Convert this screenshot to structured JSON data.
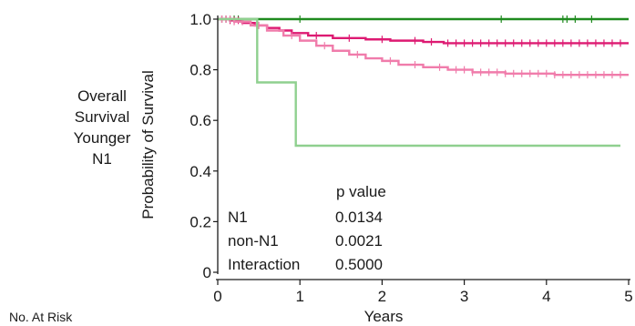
{
  "row_label": [
    "Overall",
    "Survival",
    "Younger",
    "N1"
  ],
  "at_risk_label": "No. At Risk",
  "chart_data": {
    "type": "line",
    "ylabel": "Probability of Survival",
    "xlabel": "Years",
    "xlim": [
      0,
      5
    ],
    "ylim": [
      0,
      1.0
    ],
    "x_ticks": [
      "0",
      "1",
      "2",
      "3",
      "4",
      "5"
    ],
    "y_ticks": [
      "0",
      "0.2",
      "0.4",
      "0.6",
      "0.8",
      "1.0"
    ],
    "series": [
      {
        "color": "#1f8a1f",
        "step": true,
        "points": [
          [
            0,
            1.0
          ],
          [
            5,
            1.0
          ]
        ],
        "censor_x": [
          0.05,
          0.1,
          0.15,
          0.2,
          0.25,
          1.0,
          3.45,
          4.2,
          4.25,
          4.35,
          4.55
        ]
      },
      {
        "color": "#dd1a72",
        "step": true,
        "points": [
          [
            0,
            1.0
          ],
          [
            0.15,
            0.995
          ],
          [
            0.3,
            0.985
          ],
          [
            0.45,
            0.975
          ],
          [
            0.6,
            0.965
          ],
          [
            0.75,
            0.955
          ],
          [
            0.9,
            0.945
          ],
          [
            1.1,
            0.935
          ],
          [
            1.4,
            0.925
          ],
          [
            1.8,
            0.92
          ],
          [
            2.1,
            0.915
          ],
          [
            2.5,
            0.91
          ],
          [
            2.75,
            0.905
          ],
          [
            5,
            0.905
          ]
        ],
        "censor_x": [
          0.05,
          0.1,
          0.15,
          0.2,
          0.25,
          1.2,
          1.6,
          2.0,
          2.4,
          2.6,
          2.8,
          2.9,
          3.0,
          3.1,
          3.2,
          3.3,
          3.4,
          3.5,
          3.6,
          3.7,
          3.8,
          3.9,
          4.0,
          4.1,
          4.2,
          4.3,
          4.4,
          4.5,
          4.6,
          4.7,
          4.8,
          4.9
        ]
      },
      {
        "color": "#f07cab",
        "step": true,
        "points": [
          [
            0,
            1.0
          ],
          [
            0.2,
            0.99
          ],
          [
            0.4,
            0.975
          ],
          [
            0.6,
            0.955
          ],
          [
            0.8,
            0.935
          ],
          [
            1.0,
            0.915
          ],
          [
            1.2,
            0.895
          ],
          [
            1.4,
            0.875
          ],
          [
            1.6,
            0.86
          ],
          [
            1.8,
            0.845
          ],
          [
            2.0,
            0.835
          ],
          [
            2.2,
            0.82
          ],
          [
            2.5,
            0.81
          ],
          [
            2.8,
            0.8
          ],
          [
            3.1,
            0.79
          ],
          [
            3.5,
            0.785
          ],
          [
            3.9,
            0.785
          ],
          [
            4.1,
            0.78
          ],
          [
            5,
            0.78
          ]
        ],
        "censor_x": [
          0.05,
          0.1,
          0.15,
          0.2,
          0.3,
          0.5,
          0.9,
          1.3,
          1.7,
          2.1,
          2.4,
          2.7,
          2.9,
          3.0,
          3.1,
          3.2,
          3.3,
          3.4,
          3.5,
          3.6,
          3.7,
          3.8,
          3.9,
          4.0,
          4.1,
          4.2,
          4.3,
          4.4,
          4.5,
          4.6,
          4.7,
          4.8,
          4.9
        ]
      },
      {
        "color": "#8fd08f",
        "step": true,
        "points": [
          [
            0,
            1.0
          ],
          [
            0.48,
            1.0
          ],
          [
            0.48,
            0.75
          ],
          [
            0.95,
            0.75
          ],
          [
            0.95,
            0.5
          ],
          [
            4.9,
            0.5
          ]
        ],
        "censor_x": []
      }
    ],
    "pvalue_table": {
      "header": "p value",
      "rows": [
        {
          "label": "N1",
          "value": "0.0134"
        },
        {
          "label": "non-N1",
          "value": "0.0021"
        },
        {
          "label": "Interaction",
          "value": "0.5000"
        }
      ]
    }
  }
}
